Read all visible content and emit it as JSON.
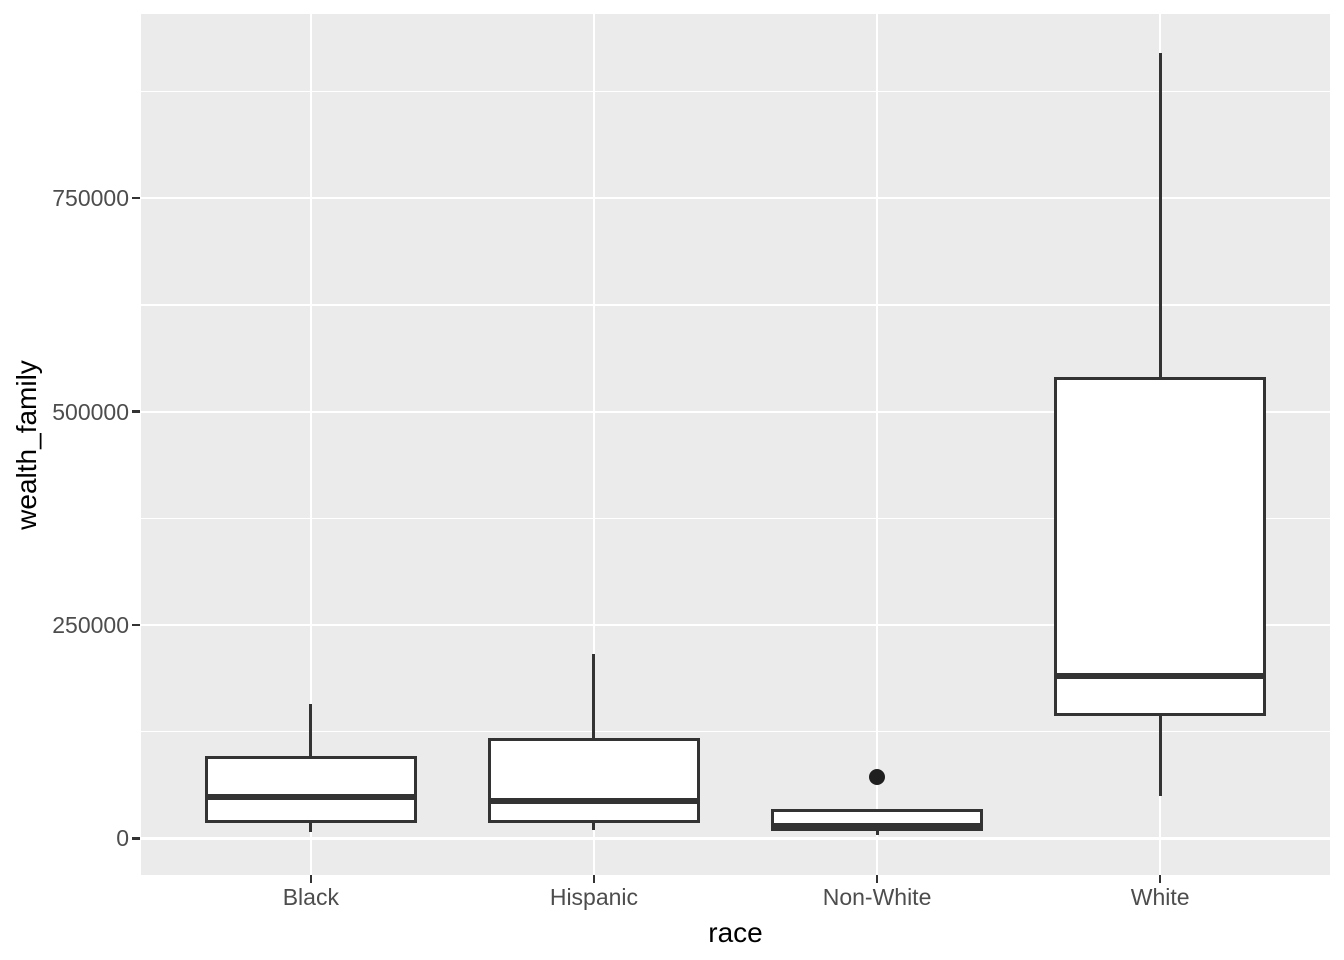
{
  "figure": {
    "background": "#FFFFFF"
  },
  "chart_data": {
    "type": "boxplot",
    "title": "",
    "xlabel": "race",
    "ylabel": "wealth_family",
    "categories": [
      "Black",
      "Hispanic",
      "Non-White",
      "White"
    ],
    "y_ticks": [
      0,
      250000,
      500000,
      750000
    ],
    "y_tick_labels": [
      "0",
      "250000",
      "500000",
      "750000"
    ],
    "y_minor_ticks": [
      125000,
      375000,
      625000,
      875000
    ],
    "ylim": [
      -42850,
      965850
    ],
    "grid": {
      "panel_bg": "#EBEBEB",
      "major_color": "#FFFFFF",
      "minor_color": "#FFFFFF",
      "legend": "none"
    },
    "style": {
      "box_fill": "#FFFFFF",
      "box_stroke": "#333333",
      "tick_color": "#333333",
      "axis_text_color": "#4D4D4D",
      "axis_title_color": "#000000",
      "outlier_color": "#1F1F1F"
    },
    "series": [
      {
        "category": "Black",
        "whisker_low": 8000,
        "q1": 18000,
        "median": 49000,
        "q3": 97000,
        "whisker_high": 157000,
        "outliers": []
      },
      {
        "category": "Hispanic",
        "whisker_low": 10000,
        "q1": 18000,
        "median": 44000,
        "q3": 118000,
        "whisker_high": 216000,
        "outliers": []
      },
      {
        "category": "Non-White",
        "whisker_low": 3500,
        "q1": 9000,
        "median": 14000,
        "q3": 34000,
        "whisker_high": 34000,
        "outliers": [
          72500
        ]
      },
      {
        "category": "White",
        "whisker_low": 50000,
        "q1": 143000,
        "median": 190000,
        "q3": 540000,
        "whisker_high": 920000,
        "outliers": []
      }
    ]
  }
}
